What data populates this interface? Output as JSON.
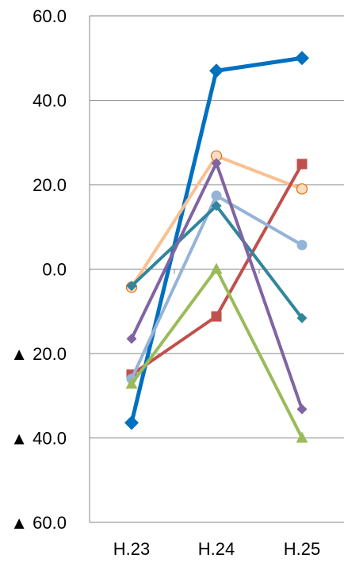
{
  "chart_data": {
    "type": "line",
    "title": "",
    "xlabel": "",
    "ylabel": "",
    "categories": [
      "H.23",
      "H.24",
      "H.25"
    ],
    "ylim": [
      -60,
      60
    ],
    "yticks": [
      60,
      40,
      20,
      0,
      -20,
      -40,
      -60
    ],
    "ytick_labels": [
      "60.0",
      "40.0",
      "20.0",
      "0.0",
      "▲ 20.0",
      "▲ 40.0",
      "▲ 60.0"
    ],
    "grid": true,
    "legend": "none",
    "series": [
      {
        "color": "#0070C0",
        "marker": "diamond",
        "values": [
          -36.4,
          47.0,
          50.0
        ]
      },
      {
        "color": "#FAC090",
        "marker": "circle",
        "values": [
          -4.3,
          26.8,
          19.0
        ]
      },
      {
        "color": "#C0504D",
        "marker": "square",
        "values": [
          -25.0,
          -11.2,
          24.9
        ]
      },
      {
        "color": "#95B3D7",
        "marker": "circle",
        "values": [
          -26.0,
          17.4,
          5.7
        ]
      },
      {
        "color": "#31859C",
        "marker": "diamond",
        "values": [
          -4.0,
          15.0,
          -11.6
        ]
      },
      {
        "color": "#8064A2",
        "marker": "diamond",
        "values": [
          -16.5,
          25.1,
          -33.2
        ]
      },
      {
        "color": "#9BBB59",
        "marker": "triangle",
        "values": [
          -27.2,
          0.0,
          -40.0
        ]
      }
    ]
  }
}
